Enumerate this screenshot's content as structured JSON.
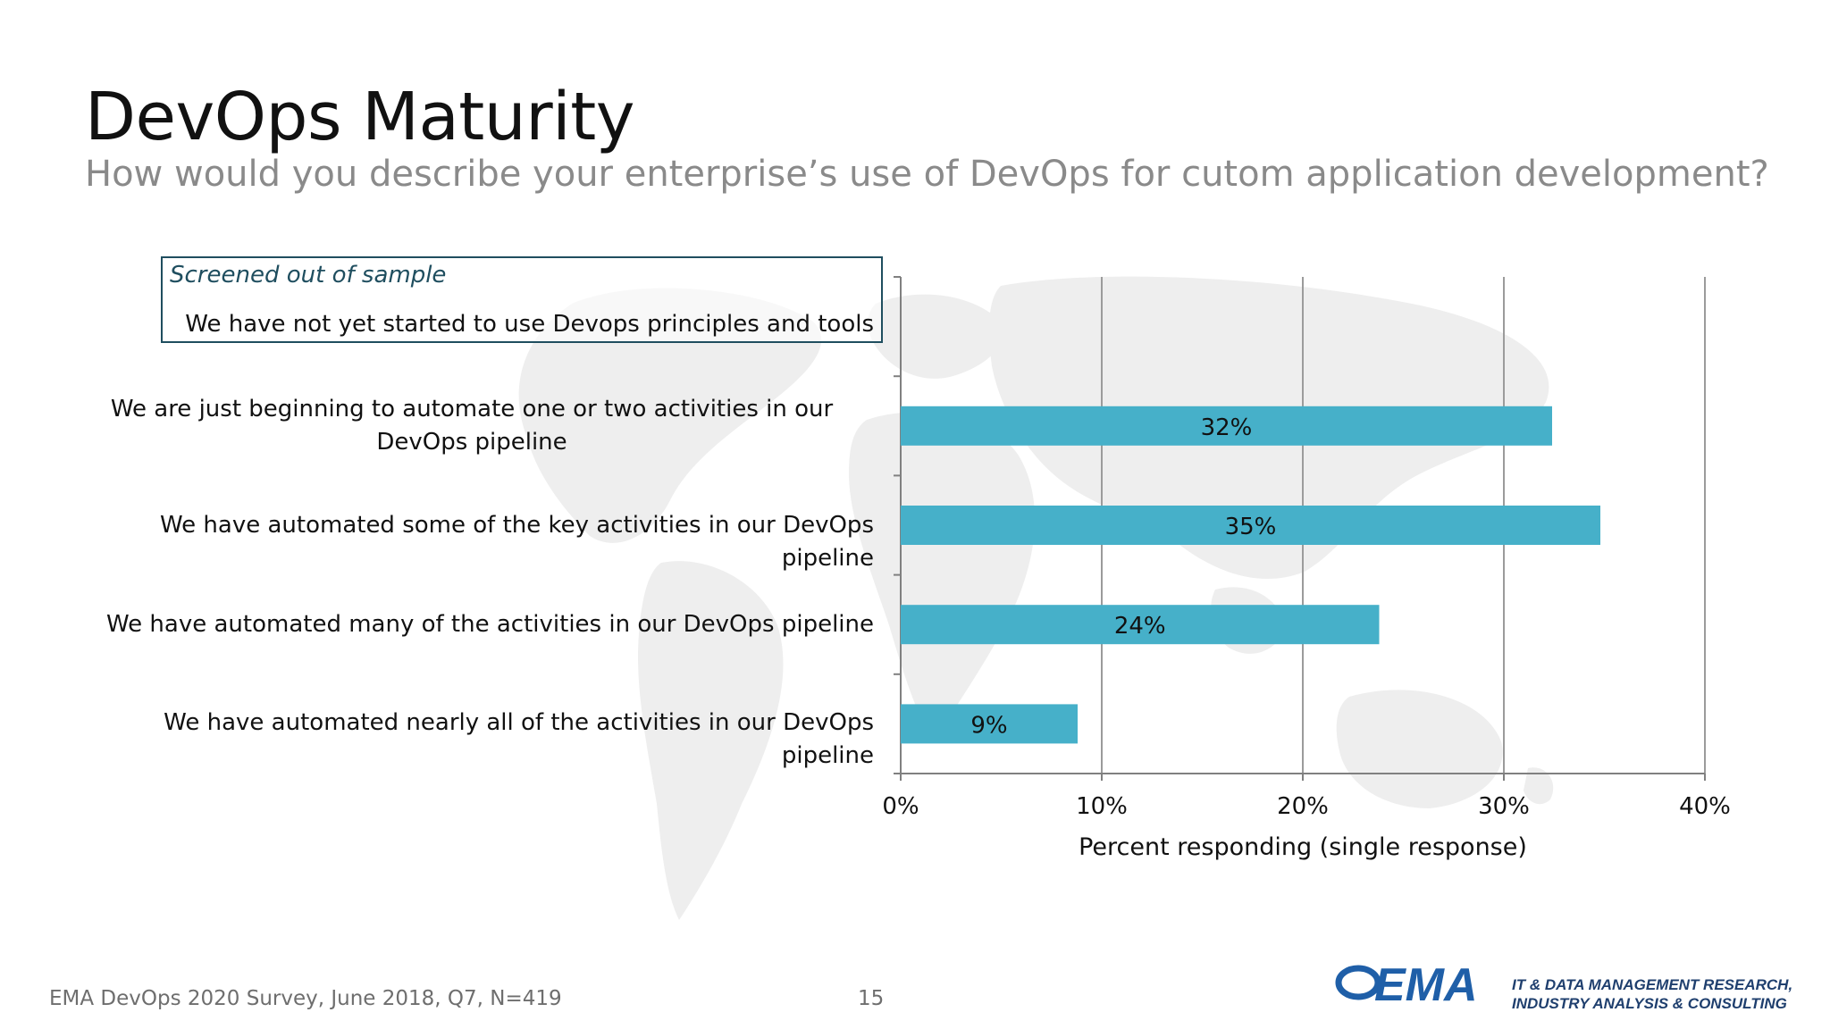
{
  "slide": {
    "title": "DevOps Maturity",
    "subtitle": "How would you describe your enterprise’s use of DevOps for cutom application development?",
    "screened_out": {
      "heading": "Screened out of sample",
      "text": "We have not yet started to use Devops principles and tools"
    },
    "footer_source": "EMA DevOps 2020 Survey, June 2018, Q7, N=419",
    "page_number": "15",
    "logo_text": "EMA",
    "tagline_line1": "IT & DATA MANAGEMENT RESEARCH,",
    "tagline_line2": "INDUSTRY ANALYSIS & CONSULTING"
  },
  "colors": {
    "bar": "#46b0c9",
    "grid": "#9b9b9b",
    "axis": "#808080",
    "logo_blue": "#1f5fa8"
  },
  "chart_data": {
    "type": "bar",
    "orientation": "horizontal",
    "categories": [
      "We have not yet started to use Devops principles and tools",
      "We are just beginning to automate one or two activities in our DevOps pipeline",
      "We have automated some of the key activities in our DevOps pipeline",
      "We have automated many of the activities in our DevOps pipeline",
      "We have automated nearly all of the activities in our DevOps pipeline"
    ],
    "values": [
      null,
      32.4,
      34.8,
      23.8,
      8.8
    ],
    "data_labels": [
      "",
      "32%",
      "35%",
      "24%",
      "9%"
    ],
    "xlabel": "Percent responding (single response)",
    "xlim": [
      0,
      40
    ],
    "xticks": [
      0,
      10,
      20,
      30,
      40
    ],
    "xtick_labels": [
      "0%",
      "10%",
      "20%",
      "30%",
      "40%"
    ],
    "grid": "vertical",
    "legend": "none"
  }
}
